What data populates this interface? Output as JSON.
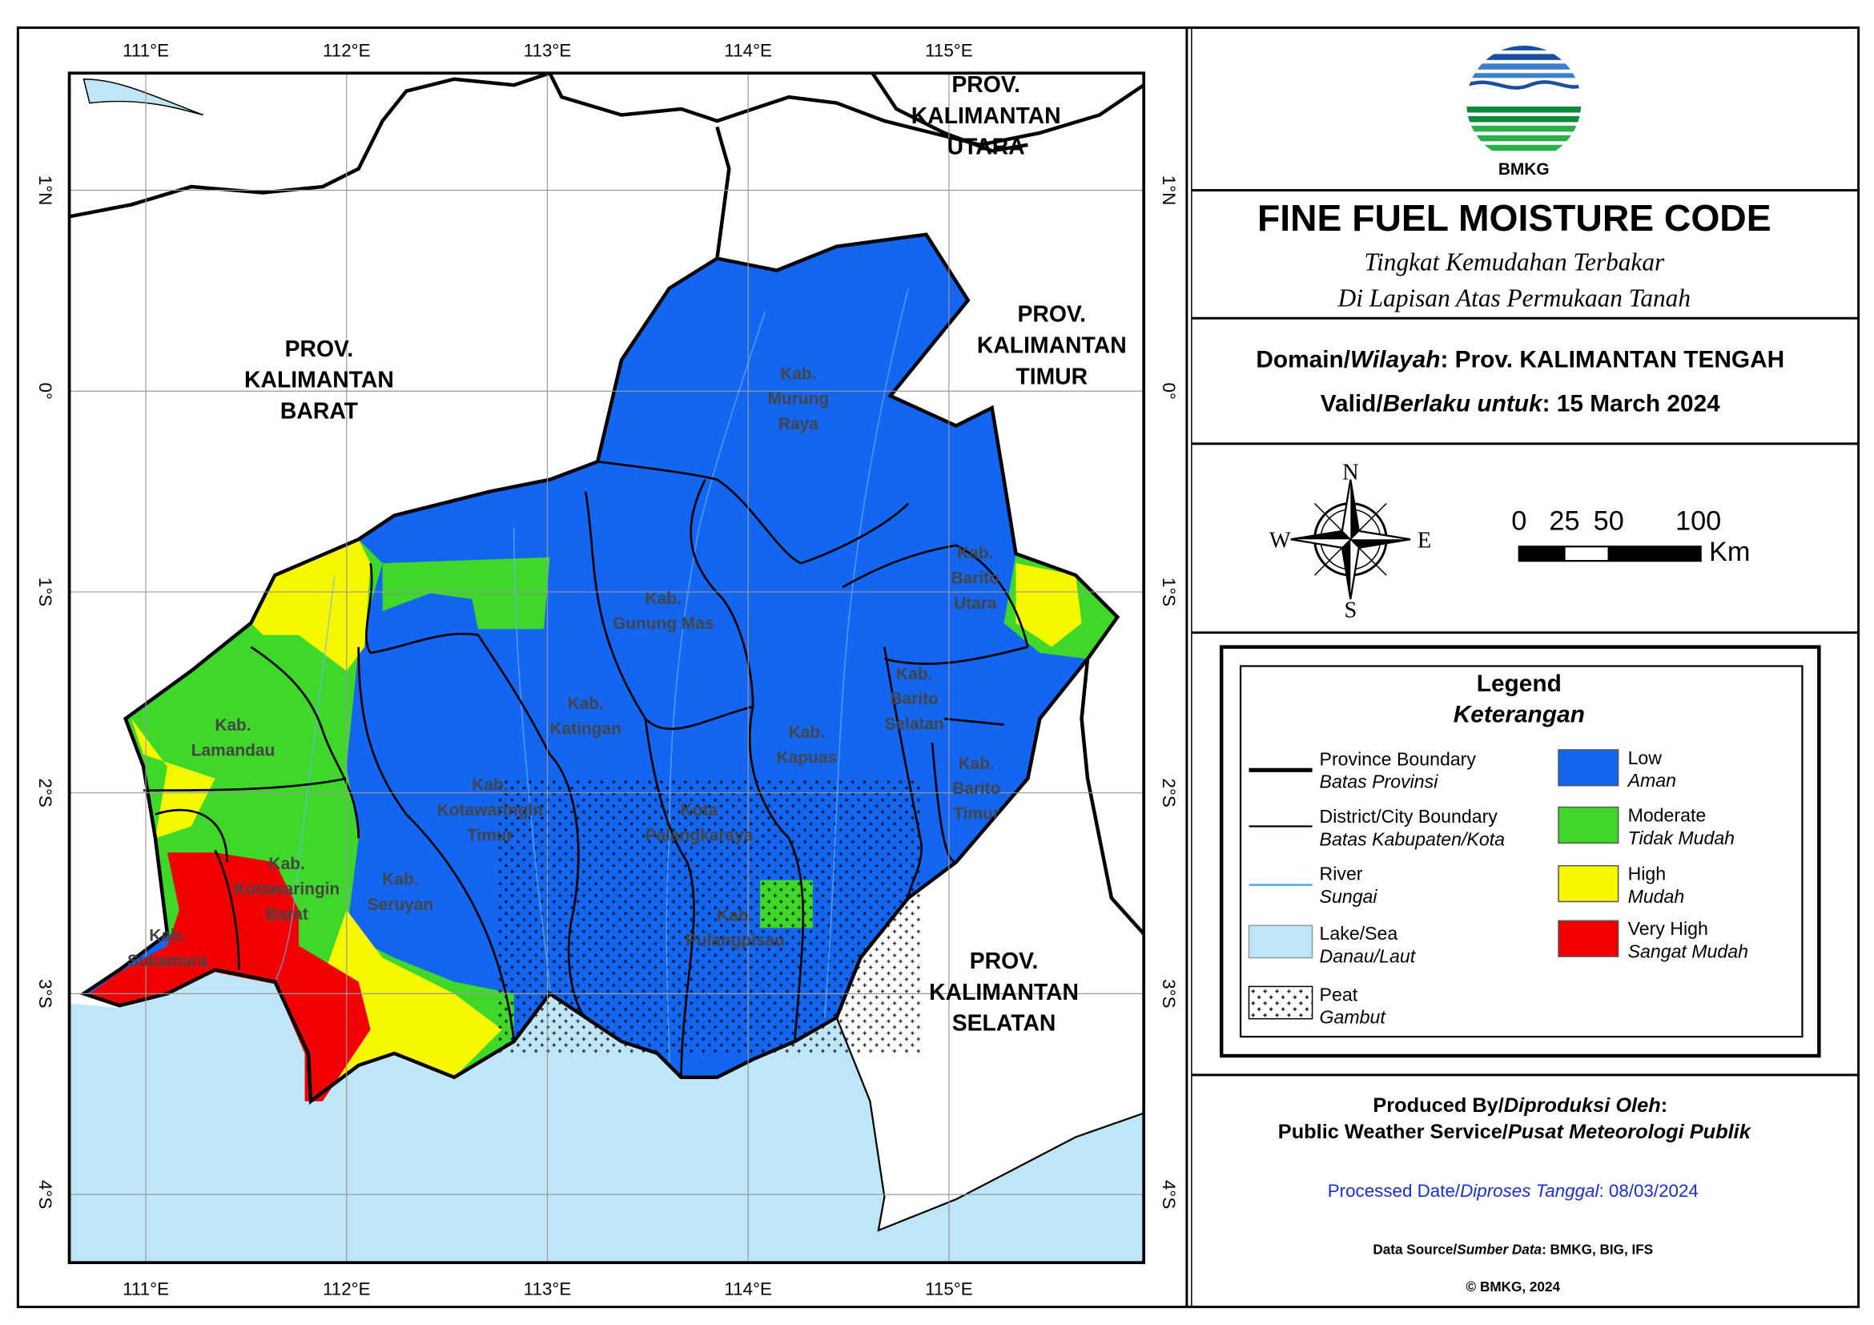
{
  "map": {
    "lon_ticks": [
      "111°E",
      "112°E",
      "113°E",
      "114°E",
      "115°E"
    ],
    "lat_ticks": [
      "1°N",
      "0°",
      "1°S",
      "2°S",
      "3°S",
      "4°S"
    ],
    "province_labels": [
      [
        "PROV.",
        "KALIMANTAN",
        "BARAT"
      ],
      [
        "PROV.",
        "KALIMANTAN",
        "UTARA"
      ],
      [
        "PROV.",
        "KALIMANTAN",
        "TIMUR"
      ],
      [
        "PROV.",
        "KALIMANTAN",
        "SELATAN"
      ]
    ],
    "district_labels": [
      [
        "Kab.",
        "Murung",
        "Raya"
      ],
      [
        "Kab.",
        "Gunung Mas"
      ],
      [
        "Kab.",
        "Barito",
        "Utara"
      ],
      [
        "Kab.",
        "Katingan"
      ],
      [
        "Kab.",
        "Barito",
        "Selatan"
      ],
      [
        "Kab.",
        "Lamandau"
      ],
      [
        "Kab.",
        "Kapuas"
      ],
      [
        "Kab.",
        "Barito",
        "Timur"
      ],
      [
        "Kab.",
        "Kotawaringin",
        "Timur"
      ],
      [
        "Kota",
        "Palangkaraya"
      ],
      [
        "Kab.",
        "Seruyan"
      ],
      [
        "Kab.",
        "Kotawaringin",
        "Barat"
      ],
      [
        "Kab.",
        "Pulangpisau"
      ],
      [
        "Kab.",
        "Sukamara"
      ]
    ]
  },
  "header": {
    "logo_text": "BMKG",
    "title": "FINE FUEL MOISTURE CODE",
    "subtitle": [
      "Tingkat Kemudahan Terbakar",
      "Di Lapisan Atas Permukaan Tanah"
    ]
  },
  "domain": {
    "label": "Domain/",
    "label_id": "Wilayah",
    "value": ": Prov. KALIMANTAN TENGAH"
  },
  "valid": {
    "label": "Valid/",
    "label_id": "Berlaku untuk",
    "value": ": 15 March 2024"
  },
  "compass": {
    "n": "N",
    "s": "S",
    "e": "E",
    "w": "W"
  },
  "scale": {
    "labels": [
      "0",
      "25",
      "50",
      "100"
    ],
    "unit": "Km"
  },
  "legend": {
    "title": "Legend",
    "title_id": "Keterangan",
    "lines": [
      {
        "label": "Province Boundary",
        "label_id": "Batas Provinsi"
      },
      {
        "label": "District/City Boundary",
        "label_id": "Batas Kabupaten/Kota"
      },
      {
        "label": "River",
        "label_id": "Sungai"
      },
      {
        "label": "Lake/Sea",
        "label_id": "Danau/Laut"
      },
      {
        "label": "Peat",
        "label_id": "Gambut"
      }
    ],
    "classes": [
      {
        "label": "Low",
        "label_id": "Aman",
        "color": "#1466f0"
      },
      {
        "label": "Moderate",
        "label_id": "Tidak Mudah",
        "color": "#3fd82a"
      },
      {
        "label": "High",
        "label_id": "Mudah",
        "color": "#f7f700"
      },
      {
        "label": "Very High",
        "label_id": "Sangat Mudah",
        "color": "#f00000"
      }
    ]
  },
  "footer": {
    "produced": "Produced By/",
    "produced_id": "Diproduksi Oleh",
    "produced_end": ":",
    "service": "Public Weather Service/",
    "service_id": "Pusat Meteorologi Publik",
    "processed": "Processed Date/",
    "processed_id": "Diproses Tanggal",
    "processed_value": ": 08/03/2024",
    "source": "Data Source/",
    "source_id": "Sumber Data",
    "source_value": ": BMKG, BIG, IFS",
    "copyright": "© BMKG, 2024"
  }
}
